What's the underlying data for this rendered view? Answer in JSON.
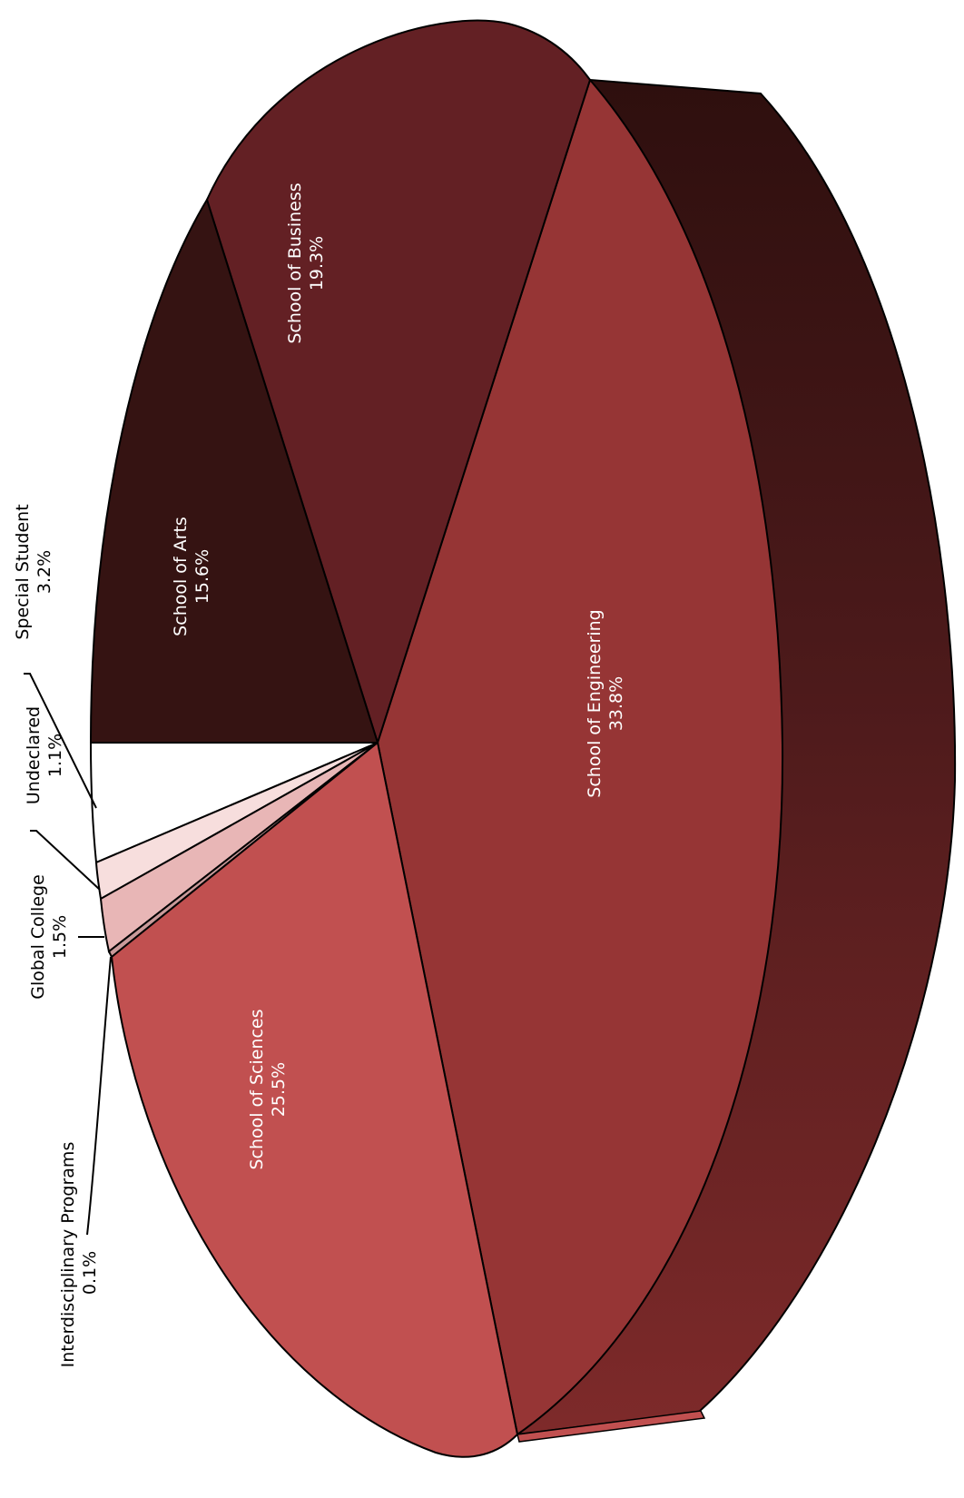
{
  "chart_data": {
    "type": "pie",
    "style": "3d-pie-rotated",
    "title": "",
    "slices": [
      {
        "name": "School of Engineering",
        "value": 33.8,
        "label": "33.8%",
        "color": "#963535"
      },
      {
        "name": "School of Business",
        "value": 19.3,
        "label": "19.3%",
        "color": "#632024"
      },
      {
        "name": "School of Arts",
        "value": 15.6,
        "label": "15.6%",
        "color": "#351312"
      },
      {
        "name": "Special Student",
        "value": 3.2,
        "label": "3.2%",
        "color": "#ffffff"
      },
      {
        "name": "Undeclared",
        "value": 1.1,
        "label": "1.1%",
        "color": "#f7dedd"
      },
      {
        "name": "Global College",
        "value": 1.5,
        "label": "1.5%",
        "color": "#e8b6b6"
      },
      {
        "name": "Interdisciplinary Programs",
        "value": 0.1,
        "label": "0.1%",
        "color": "#c99a9a"
      },
      {
        "name": "School of Sciences",
        "value": 25.5,
        "label": "25.5%",
        "color": "#c15050"
      }
    ],
    "side_colors": {
      "dark": "#2e0f0e",
      "mid": "#5a1d1f",
      "light": "#7e2a2a",
      "sciences_edge": "#c15050"
    },
    "legend": "none",
    "label_position": "on-slice-and-callouts"
  }
}
